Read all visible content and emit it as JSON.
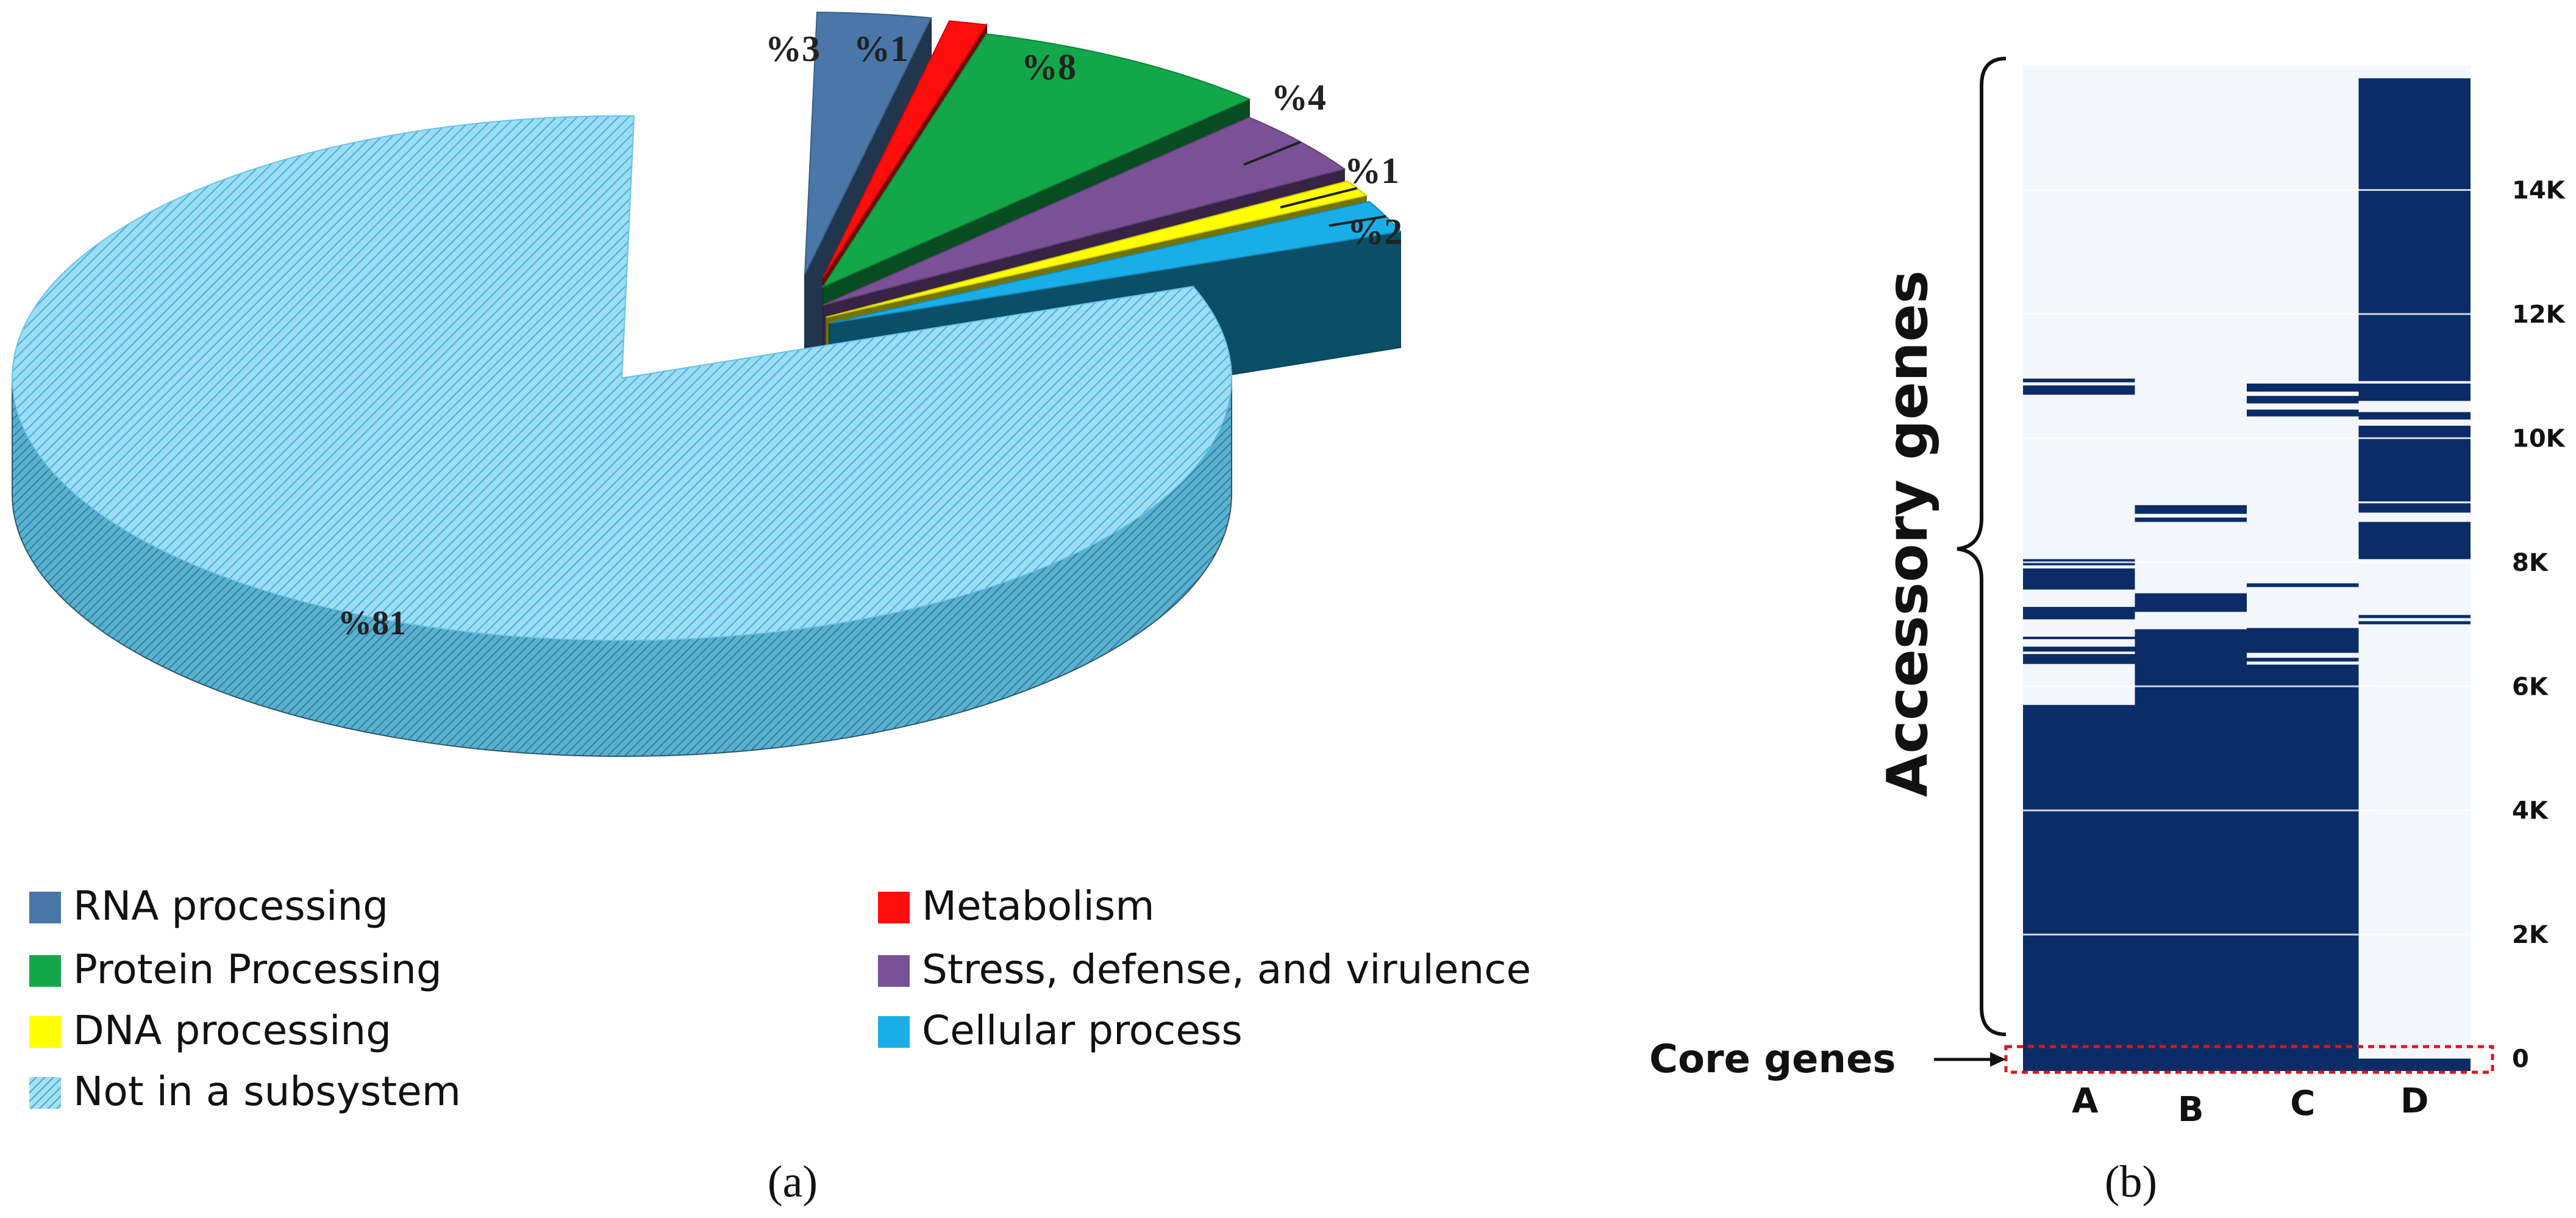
{
  "panel_labels": {
    "a": "(a)",
    "b": "(b)"
  },
  "colors": {
    "rna": "#4a76a8",
    "metabolism": "#ff0d0d",
    "protein": "#12a84a",
    "stress": "#7a5196",
    "dna": "#ffff00",
    "cellular": "#19aee8",
    "not_in_subsystem": "#8fd6ee",
    "heatmap_fill": "#0b2c66",
    "heatmap_background": "#f3f7fc",
    "core_box": "#e01515"
  },
  "chart_data": [
    {
      "type": "pie",
      "style": "3d-exploded",
      "title": "",
      "slices": [
        {
          "label": "RNA processing",
          "percent": 3,
          "text": "%3",
          "color_key": "rna"
        },
        {
          "label": "Metabolism",
          "percent": 1,
          "text": "%1",
          "color_key": "metabolism"
        },
        {
          "label": "Protein Processing",
          "percent": 8,
          "text": "%8",
          "color_key": "protein"
        },
        {
          "label": "Stress, defense, and virulence",
          "percent": 4,
          "text": "%4",
          "color_key": "stress"
        },
        {
          "label": "DNA processing",
          "percent": 1,
          "text": "%1",
          "color_key": "dna"
        },
        {
          "label": "Cellular process",
          "percent": 2,
          "text": "%2",
          "color_key": "cellular"
        },
        {
          "label": "Not in a subsystem",
          "percent": 81,
          "text": "%81",
          "color_key": "not_in_subsystem"
        }
      ],
      "legend": {
        "placement": "bottom",
        "items": [
          {
            "label": "RNA processing",
            "color_key": "rna"
          },
          {
            "label": "Metabolism",
            "color_key": "metabolism"
          },
          {
            "label": "Protein Processing",
            "color_key": "protein"
          },
          {
            "label": "Stress, defense, and virulence",
            "color_key": "stress"
          },
          {
            "label": "DNA processing",
            "color_key": "dna"
          },
          {
            "label": "Cellular process",
            "color_key": "cellular"
          },
          {
            "label": "Not in a subsystem",
            "color_key": "not_in_subsystem",
            "hatched": true
          }
        ]
      }
    },
    {
      "type": "heatmap",
      "title": "",
      "columns": [
        "A",
        "B",
        "C",
        "D"
      ],
      "ylim": [
        -200,
        16000
      ],
      "y_ticks": [
        {
          "value": 0,
          "label": "0"
        },
        {
          "value": 2000,
          "label": "2K"
        },
        {
          "value": 4000,
          "label": "4K"
        },
        {
          "value": 6000,
          "label": "6K"
        },
        {
          "value": 8000,
          "label": "8K"
        },
        {
          "value": 10000,
          "label": "10K"
        },
        {
          "value": 12000,
          "label": "12K"
        },
        {
          "value": 14000,
          "label": "14K"
        }
      ],
      "present_ranges": [
        {
          "column": "A",
          "ranges": [
            [
              -200,
              5700
            ],
            [
              6360,
              6520
            ],
            [
              6560,
              6640
            ],
            [
              6760,
              6800
            ],
            [
              7080,
              7280
            ],
            [
              7560,
              7900
            ],
            [
              7950,
              8050
            ],
            [
              10700,
              10850
            ],
            [
              10900,
              10960
            ]
          ]
        },
        {
          "column": "B",
          "ranges": [
            [
              -200,
              6920
            ],
            [
              7200,
              7500
            ],
            [
              8650,
              8720
            ],
            [
              8780,
              8920
            ]
          ]
        },
        {
          "column": "C",
          "ranges": [
            [
              -200,
              6350
            ],
            [
              6400,
              6460
            ],
            [
              6540,
              6940
            ],
            [
              7600,
              7660
            ],
            [
              10350,
              10460
            ],
            [
              10560,
              10680
            ],
            [
              10750,
              10880
            ]
          ]
        },
        {
          "column": "D",
          "ranges": [
            [
              -200,
              0
            ],
            [
              7000,
              7050
            ],
            [
              7100,
              7150
            ],
            [
              8050,
              8650
            ],
            [
              8800,
              8950
            ],
            [
              8980,
              10200
            ],
            [
              10300,
              10420
            ],
            [
              10600,
              10880
            ],
            [
              10920,
              15800
            ]
          ]
        }
      ],
      "annotations": {
        "accessory_label": "Accessory genes",
        "core_label": "Core genes"
      }
    }
  ]
}
